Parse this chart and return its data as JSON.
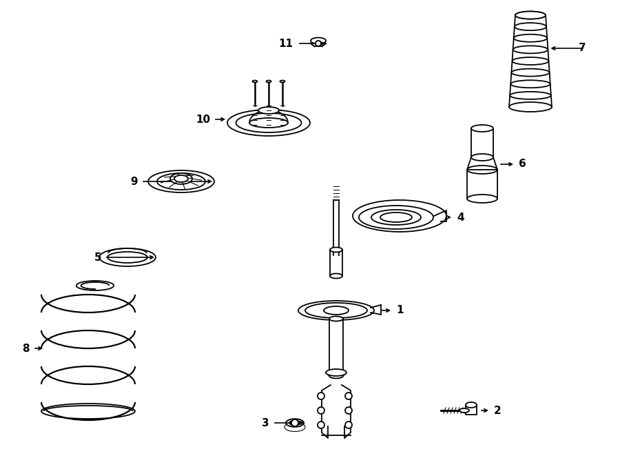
{
  "bg_color": "#ffffff",
  "line_color": "#000000",
  "lw": 1.3,
  "fig_width": 9.0,
  "fig_height": 6.61,
  "dpi": 100
}
